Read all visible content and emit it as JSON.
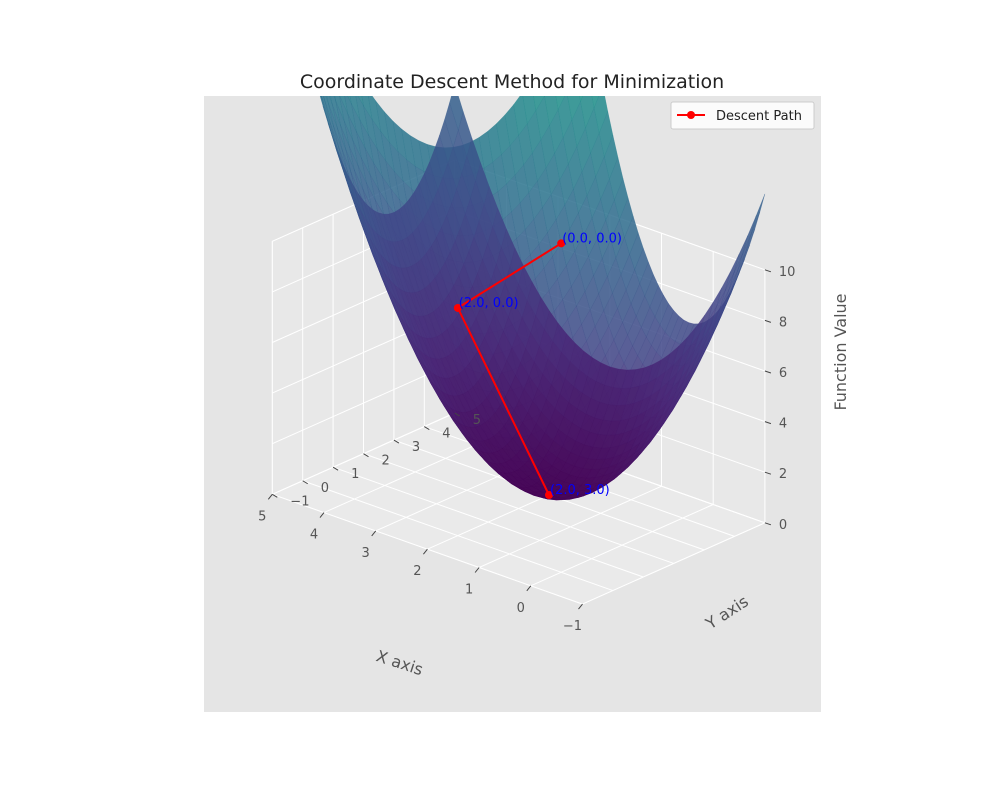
{
  "chart_data": {
    "type": "surface3d",
    "title": "Coordinate Descent Method for Minimization",
    "xlabel": "X axis",
    "ylabel": "Y axis",
    "zlabel": "Function Value",
    "xticks": [
      "−1",
      "0",
      "1",
      "2",
      "3",
      "4",
      "5"
    ],
    "yticks": [
      "−1",
      "0",
      "1",
      "2",
      "3",
      "4",
      "5"
    ],
    "zticks": [
      "0",
      "2",
      "4",
      "6",
      "8",
      "10"
    ],
    "xlim": [
      -1,
      5
    ],
    "ylim": [
      -1,
      5
    ],
    "zlim": [
      0,
      10
    ],
    "surface": {
      "function": "(x-2)^2 + (y-3)^2",
      "colormap": "viridis"
    },
    "series": [
      {
        "name": "Descent Path",
        "color": "#ff0000",
        "points": [
          {
            "x": 0.0,
            "y": 0.0,
            "z": 13.0,
            "label": "(0.0, 0.0)"
          },
          {
            "x": 2.0,
            "y": 0.0,
            "z": 9.0,
            "label": "(2.0, 0.0)"
          },
          {
            "x": 2.0,
            "y": 3.0,
            "z": 0.0,
            "label": "(2.0, 3.0)"
          }
        ]
      }
    ],
    "legend": {
      "position": "top-right",
      "entries": [
        "Descent Path"
      ]
    },
    "grid": true,
    "pane_color": "#e5e5e5"
  }
}
